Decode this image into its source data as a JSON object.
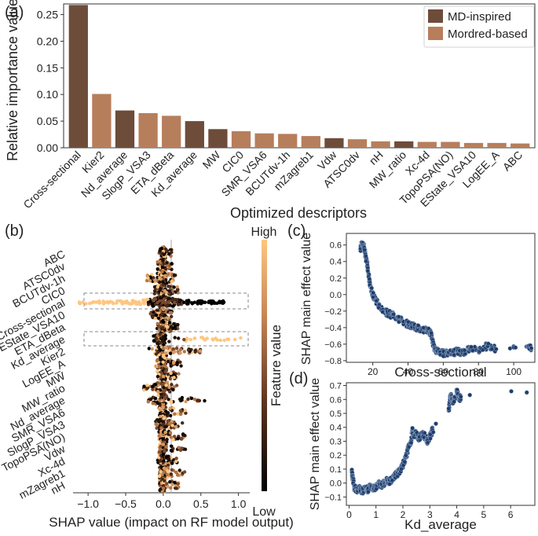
{
  "panels": {
    "a": "(a)",
    "b": "(b)",
    "c": "(c)",
    "d": "(d)"
  },
  "colors": {
    "md": "#6e4c3a",
    "mordred": "#b77e5c",
    "shap_dot": "#1f3d6b",
    "shap_dot_edge": "#9fb4cf",
    "box": "#8a8a8a"
  },
  "chart_data": [
    {
      "id": "a",
      "type": "bar",
      "ylabel": "Relative importance values",
      "xlabel": "Optimized descriptors",
      "ylim": [
        0,
        0.27
      ],
      "yticks": [
        0.0,
        0.05,
        0.1,
        0.15,
        0.2,
        0.25
      ],
      "ytick_labels": [
        "0.00",
        "0.05",
        "0.10",
        "0.15",
        "0.20",
        "0.25"
      ],
      "legend": [
        {
          "label": "MD-inspired",
          "group": "md"
        },
        {
          "label": "Mordred-based",
          "group": "mordred"
        }
      ],
      "legend_position": "top-right",
      "categories": [
        "Cross-sectional",
        "Kier2",
        "Nd_average",
        "SlogP_VSA3",
        "ETA_dBeta",
        "Kd_average",
        "MW",
        "CIC0",
        "SMR_VSA6",
        "BCUTdv-1h",
        "mZagreb1",
        "Vdw",
        "ATSC0dv",
        "nH",
        "MW_ratio",
        "Xc-4d",
        "TopoPSA(NO)",
        "EState_VSA10",
        "LogEE_A",
        "ABC"
      ],
      "values": [
        0.268,
        0.101,
        0.07,
        0.065,
        0.06,
        0.05,
        0.035,
        0.031,
        0.027,
        0.026,
        0.022,
        0.018,
        0.016,
        0.012,
        0.012,
        0.011,
        0.011,
        0.009,
        0.009,
        0.008
      ],
      "groups": [
        "md",
        "mordred",
        "md",
        "mordred",
        "mordred",
        "md",
        "md",
        "mordred",
        "mordred",
        "mordred",
        "mordred",
        "md",
        "mordred",
        "mordred",
        "md",
        "mordred",
        "mordred",
        "mordred",
        "mordred",
        "mordred"
      ]
    },
    {
      "id": "b",
      "type": "scatter",
      "subtype": "shap-beeswarm",
      "xlabel": "SHAP value (impact on RF model output)",
      "xlim": [
        -1.2,
        1.15
      ],
      "xticks": [
        -1.0,
        -0.5,
        0.0,
        0.5,
        1.0
      ],
      "xtick_labels": [
        "−1.0",
        "−0.5",
        "0.0",
        "0.5",
        "1.0"
      ],
      "colorbar_label": "Feature value",
      "colorbar_high": "High",
      "colorbar_low": "Low",
      "features": [
        "ABC",
        "ATSC0dv",
        "BCUTdv-1h",
        "CIC0",
        "Cross-sectional",
        "EState_VSA10",
        "ETA_dBeta",
        "Kd_average",
        "Kier2",
        "LogEE_A",
        "MW",
        "MW_ratio",
        "Nd_average",
        "SMR_VSA6",
        "SlogP_VSA3",
        "TopoPSA(NO)",
        "Vdw",
        "Xc-4d",
        "mZagreb1",
        "nH"
      ],
      "shap_range_min": [
        -0.06,
        -0.08,
        -0.22,
        -0.12,
        -1.12,
        -0.18,
        -0.1,
        -0.14,
        -0.2,
        -0.1,
        -0.08,
        -0.28,
        -0.22,
        -0.06,
        -0.1,
        -0.06,
        -0.06,
        -0.08,
        -0.05,
        -0.05
      ],
      "shap_range_max": [
        0.12,
        0.12,
        0.18,
        0.2,
        0.82,
        0.12,
        0.2,
        1.08,
        0.5,
        0.24,
        0.22,
        0.18,
        0.55,
        0.3,
        0.3,
        0.3,
        0.3,
        0.2,
        0.3,
        0.22
      ],
      "highlighted_features": [
        "Cross-sectional",
        "Kd_average"
      ]
    },
    {
      "id": "c",
      "type": "scatter",
      "xlabel": "Cross-sectional",
      "ylabel": "SHAP main effect value",
      "xlim": [
        5,
        112
      ],
      "ylim": [
        -0.82,
        0.74
      ],
      "xticks": [
        20,
        40,
        60,
        80,
        100
      ],
      "yticks": [
        -0.8,
        -0.6,
        -0.4,
        -0.2,
        0.0,
        0.2,
        0.4,
        0.6
      ],
      "ytick_labels": [
        "−0.8",
        "−0.6",
        "−0.4",
        "−0.2",
        "0.0",
        "0.2",
        "0.4",
        "0.6"
      ],
      "x": [
        13,
        14,
        15,
        16,
        17,
        18,
        19,
        20,
        22,
        25,
        28,
        31,
        34,
        37,
        40,
        42,
        45,
        48,
        51,
        53,
        54,
        55,
        56,
        58,
        60,
        62,
        65,
        68,
        71,
        75,
        80,
        85,
        90,
        100,
        108,
        110
      ],
      "y": [
        0.55,
        0.62,
        0.58,
        0.45,
        0.35,
        0.18,
        0.08,
        0.0,
        -0.08,
        -0.18,
        -0.22,
        -0.25,
        -0.28,
        -0.33,
        -0.36,
        -0.38,
        -0.4,
        -0.42,
        -0.43,
        -0.48,
        -0.58,
        -0.65,
        -0.68,
        -0.7,
        -0.71,
        -0.7,
        -0.72,
        -0.68,
        -0.71,
        -0.66,
        -0.68,
        -0.62,
        -0.66,
        -0.64,
        -0.63,
        -0.65
      ]
    },
    {
      "id": "d",
      "type": "scatter",
      "xlabel": "Kd_average",
      "ylabel": "SHAP main effect value",
      "xlim": [
        -0.1,
        6.9
      ],
      "ylim": [
        -0.16,
        0.72
      ],
      "xticks": [
        0,
        1,
        2,
        3,
        4,
        5,
        6
      ],
      "yticks": [
        -0.1,
        0.0,
        0.1,
        0.2,
        0.3,
        0.4,
        0.5,
        0.6,
        0.7
      ],
      "ytick_labels": [
        "−0.1",
        "0.0",
        "0.1",
        "0.2",
        "0.3",
        "0.4",
        "0.5",
        "0.6",
        "0.7"
      ],
      "x": [
        0.1,
        0.15,
        0.2,
        0.3,
        0.4,
        0.5,
        0.6,
        0.7,
        0.8,
        0.9,
        1.0,
        1.1,
        1.2,
        1.3,
        1.4,
        1.5,
        1.6,
        1.7,
        1.8,
        1.9,
        2.0,
        2.1,
        2.2,
        2.3,
        2.35,
        2.4,
        2.5,
        2.6,
        2.75,
        2.9,
        3.0,
        3.1,
        3.7,
        3.75,
        3.8,
        3.85,
        4.0,
        4.1,
        4.15,
        6.6
      ],
      "y": [
        0.08,
        0.02,
        -0.03,
        -0.05,
        -0.04,
        -0.06,
        -0.03,
        -0.05,
        -0.02,
        -0.04,
        -0.03,
        0.0,
        -0.02,
        0.0,
        0.02,
        0.01,
        0.03,
        0.05,
        0.07,
        0.09,
        0.13,
        0.18,
        0.25,
        0.3,
        0.38,
        0.33,
        0.36,
        0.32,
        0.36,
        0.3,
        0.33,
        0.38,
        0.52,
        0.6,
        0.63,
        0.57,
        0.66,
        0.6,
        0.62,
        0.65
      ]
    }
  ]
}
